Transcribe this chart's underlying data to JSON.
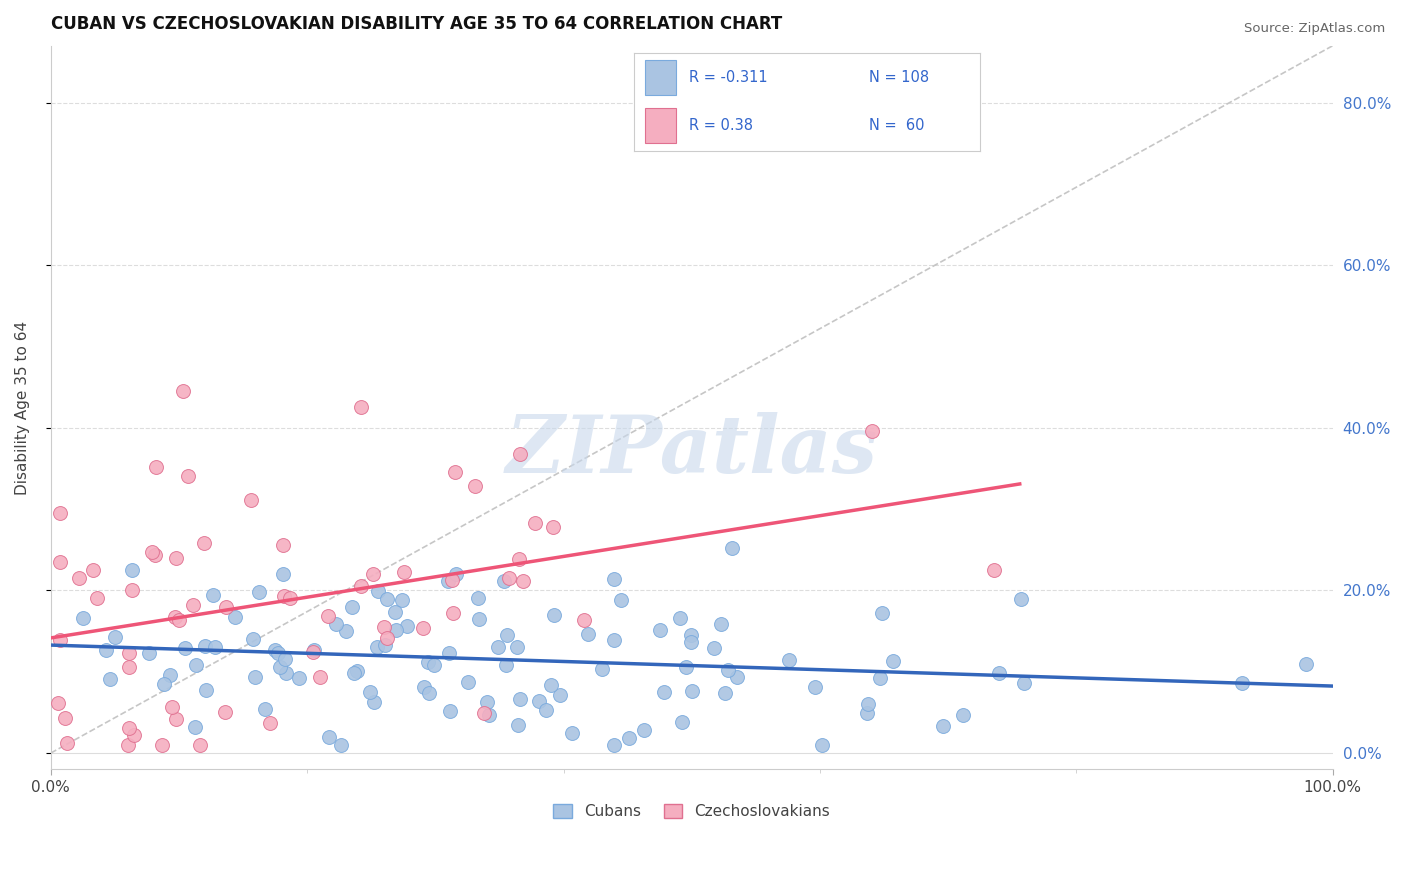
{
  "title": "CUBAN VS CZECHOSLOVAKIAN DISABILITY AGE 35 TO 64 CORRELATION CHART",
  "source_text": "Source: ZipAtlas.com",
  "ylabel": "Disability Age 35 to 64",
  "xlim": [
    0,
    1
  ],
  "ylim": [
    -0.02,
    0.87
  ],
  "ytick_vals": [
    0.0,
    0.2,
    0.4,
    0.6,
    0.8
  ],
  "ytick_labels_right": [
    "0.0%",
    "20.0%",
    "40.0%",
    "60.0%",
    "80.0%"
  ],
  "cuban_color": "#aac4e2",
  "czechoslovakian_color": "#f5aec0",
  "cuban_edge_color": "#7aaadd",
  "czechoslovakian_edge_color": "#e07090",
  "cuban_line_color": "#3366bb",
  "czechoslovakian_line_color": "#ee5577",
  "cuban_R": -0.311,
  "cuban_N": 108,
  "czechoslovakian_R": 0.38,
  "czechoslovakian_N": 60,
  "legend_text_color": "#3366cc",
  "title_color": "#111111",
  "background_color": "#ffffff",
  "grid_color": "#dddddd",
  "watermark": "ZIPatlas",
  "watermark_color": "#c8d8ec",
  "ref_line_color": "#cccccc",
  "cuban_seed": 42,
  "czechoslovakian_seed": 7
}
